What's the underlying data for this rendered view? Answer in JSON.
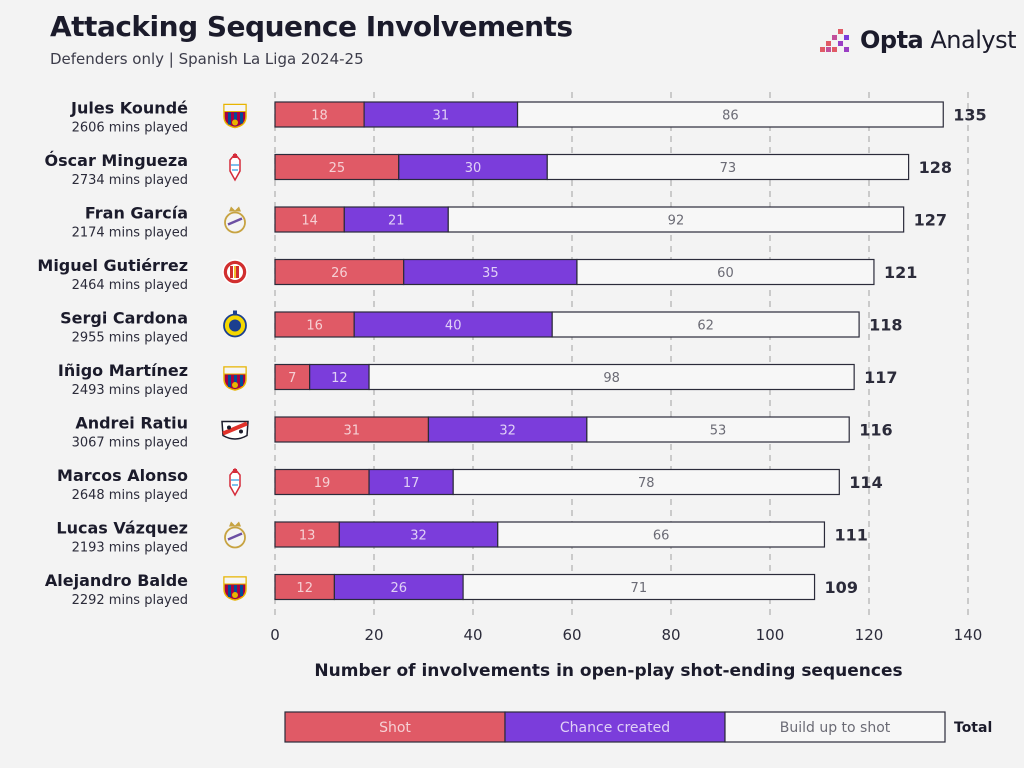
{
  "header": {
    "title": "Attacking Sequence Involvements",
    "subtitle": "Defenders only | Spanish La Liga 2024-25",
    "logo_bold": "Opta",
    "logo_rest": " Analyst"
  },
  "colors": {
    "shot": "#e05a66",
    "chance": "#7b3ddb",
    "buildup": "#f7f7f7",
    "grid": "#b5b5b5",
    "bar_stroke": "#2b2b3a"
  },
  "chart_data": {
    "type": "bar",
    "orientation": "horizontal",
    "stacked": true,
    "xlabel": "Number of involvements in open-play shot-ending sequences",
    "xlim": [
      0,
      140
    ],
    "xticks": [
      0,
      20,
      40,
      60,
      80,
      100,
      120,
      140
    ],
    "grid": true,
    "series_names": [
      "Shot",
      "Chance created",
      "Build up to shot"
    ],
    "total_label": "Total",
    "players": [
      {
        "name": "Jules Koundé",
        "mins": "2606 mins played",
        "club": "barcelona-crest-icon",
        "values": [
          18,
          31,
          86
        ],
        "total": 135
      },
      {
        "name": "Óscar Mingueza",
        "mins": "2734 mins played",
        "club": "celta-crest-icon",
        "values": [
          25,
          30,
          73
        ],
        "total": 128
      },
      {
        "name": "Fran García",
        "mins": "2174 mins played",
        "club": "real-madrid-crest-icon",
        "values": [
          14,
          21,
          92
        ],
        "total": 127
      },
      {
        "name": "Miguel Gutiérrez",
        "mins": "2464 mins played",
        "club": "girona-crest-icon",
        "values": [
          26,
          35,
          60
        ],
        "total": 121
      },
      {
        "name": "Sergi Cardona",
        "mins": "2955 mins played",
        "club": "villarreal-crest-icon",
        "values": [
          16,
          40,
          62
        ],
        "total": 118
      },
      {
        "name": "Iñigo Martínez",
        "mins": "2493 mins played",
        "club": "barcelona-crest-icon",
        "values": [
          7,
          12,
          98
        ],
        "total": 117
      },
      {
        "name": "Andrei Ratiu",
        "mins": "3067 mins played",
        "club": "rayo-crest-icon",
        "values": [
          31,
          32,
          53
        ],
        "total": 116
      },
      {
        "name": "Marcos Alonso",
        "mins": "2648 mins played",
        "club": "celta-crest-icon",
        "values": [
          19,
          17,
          78
        ],
        "total": 114
      },
      {
        "name": "Lucas Vázquez",
        "mins": "2193 mins played",
        "club": "real-madrid-crest-icon",
        "values": [
          13,
          32,
          66
        ],
        "total": 111
      },
      {
        "name": "Alejandro Balde",
        "mins": "2292 mins played",
        "club": "barcelona-crest-icon",
        "values": [
          12,
          26,
          71
        ],
        "total": 109
      }
    ]
  }
}
